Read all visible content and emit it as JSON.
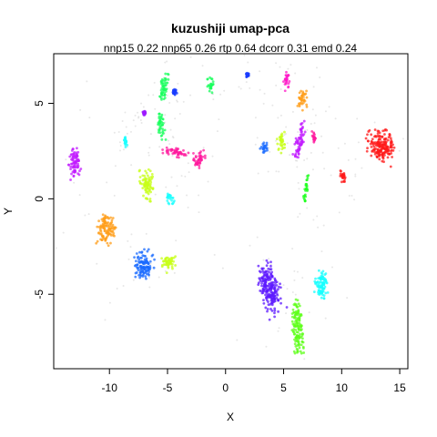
{
  "chart_data": {
    "type": "scatter",
    "title": "kuzushiji umap-pca",
    "subtitle": "nnp15 0.22 nnp65 0.26 rtp 0.64 dcorr 0.31 emd 0.24",
    "xlabel": "X",
    "ylabel": "Y",
    "xlim": [
      -14.8,
      15.7
    ],
    "ylim": [
      -8.9,
      7.6
    ],
    "xticks": [
      -10,
      -5,
      0,
      5,
      10,
      15
    ],
    "yticks": [
      -5,
      0,
      5
    ],
    "grid": false,
    "legend": "none",
    "clusters": [
      {
        "cx": -13.0,
        "cy": 1.9,
        "rx": 0.5,
        "ry": 0.9,
        "rot": 10,
        "color": "#c21cff"
      },
      {
        "cx": -10.3,
        "cy": -1.6,
        "rx": 0.8,
        "ry": 0.8,
        "rot": 0,
        "color": "#ff9d1a"
      },
      {
        "cx": -6.8,
        "cy": 0.7,
        "rx": 0.6,
        "ry": 0.8,
        "rot": 0,
        "color": "#c8ff1a"
      },
      {
        "cx": -7.0,
        "cy": -3.5,
        "rx": 0.8,
        "ry": 0.8,
        "rot": 0,
        "color": "#1a6bff"
      },
      {
        "cx": -4.9,
        "cy": -3.4,
        "rx": 0.6,
        "ry": 0.5,
        "rot": 0,
        "color": "#c8ff1a"
      },
      {
        "cx": -5.3,
        "cy": 5.9,
        "rx": 0.3,
        "ry": 1.0,
        "rot": -15,
        "color": "#1aff5e"
      },
      {
        "cx": -5.6,
        "cy": 3.9,
        "rx": 0.3,
        "ry": 0.8,
        "rot": 10,
        "color": "#1aff5e"
      },
      {
        "cx": -1.3,
        "cy": 6.0,
        "rx": 0.3,
        "ry": 0.5,
        "rot": 0,
        "color": "#1aff5e"
      },
      {
        "cx": -4.4,
        "cy": 5.6,
        "rx": 0.2,
        "ry": 0.15,
        "rot": 0,
        "color": "#1a3cff"
      },
      {
        "cx": 1.9,
        "cy": 6.5,
        "rx": 0.12,
        "ry": 0.12,
        "rot": 0,
        "color": "#1a3cff"
      },
      {
        "cx": -2.3,
        "cy": 2.0,
        "rx": 0.5,
        "ry": 0.5,
        "rot": 0,
        "color": "#ff1a9d"
      },
      {
        "cx": -4.3,
        "cy": 2.4,
        "rx": 1.1,
        "ry": 0.25,
        "rot": -5,
        "color": "#ff1a9d"
      },
      {
        "cx": -4.7,
        "cy": 0.0,
        "rx": 0.4,
        "ry": 0.25,
        "rot": 0,
        "color": "#1affff"
      },
      {
        "cx": -8.6,
        "cy": 3.0,
        "rx": 0.1,
        "ry": 0.25,
        "rot": 20,
        "color": "#1affff"
      },
      {
        "cx": -7.0,
        "cy": 4.5,
        "rx": 0.12,
        "ry": 0.12,
        "rot": 0,
        "color": "#9d1aff"
      },
      {
        "cx": 5.3,
        "cy": 6.2,
        "rx": 0.3,
        "ry": 0.5,
        "rot": 0,
        "color": "#ff1ac8"
      },
      {
        "cx": 6.6,
        "cy": 5.2,
        "rx": 0.4,
        "ry": 0.55,
        "rot": 0,
        "color": "#ff9d1a"
      },
      {
        "cx": 6.4,
        "cy": 3.0,
        "rx": 0.35,
        "ry": 1.1,
        "rot": -20,
        "color": "#c21cff"
      },
      {
        "cx": 4.8,
        "cy": 3.0,
        "rx": 0.35,
        "ry": 0.55,
        "rot": 0,
        "color": "#c8ff1a"
      },
      {
        "cx": 3.3,
        "cy": 2.7,
        "rx": 0.3,
        "ry": 0.25,
        "rot": 0,
        "color": "#1a6bff"
      },
      {
        "cx": 7.6,
        "cy": 3.2,
        "rx": 0.15,
        "ry": 0.35,
        "rot": 15,
        "color": "#ff1a9d"
      },
      {
        "cx": 13.3,
        "cy": 2.8,
        "rx": 1.2,
        "ry": 0.85,
        "rot": -10,
        "color": "#ff1a1a"
      },
      {
        "cx": 10.1,
        "cy": 1.2,
        "rx": 0.2,
        "ry": 0.35,
        "rot": 20,
        "color": "#ff1a1a"
      },
      {
        "cx": 6.9,
        "cy": 0.5,
        "rx": 0.15,
        "ry": 0.9,
        "rot": -15,
        "color": "#1aff1a"
      },
      {
        "cx": 3.8,
        "cy": -4.7,
        "rx": 0.85,
        "ry": 1.4,
        "rot": 25,
        "color": "#5e1aff"
      },
      {
        "cx": 8.3,
        "cy": -4.5,
        "rx": 0.6,
        "ry": 0.9,
        "rot": 0,
        "color": "#1affff"
      },
      {
        "cx": 6.2,
        "cy": -6.7,
        "rx": 0.5,
        "ry": 1.5,
        "rot": 10,
        "color": "#5eff1a"
      }
    ]
  }
}
